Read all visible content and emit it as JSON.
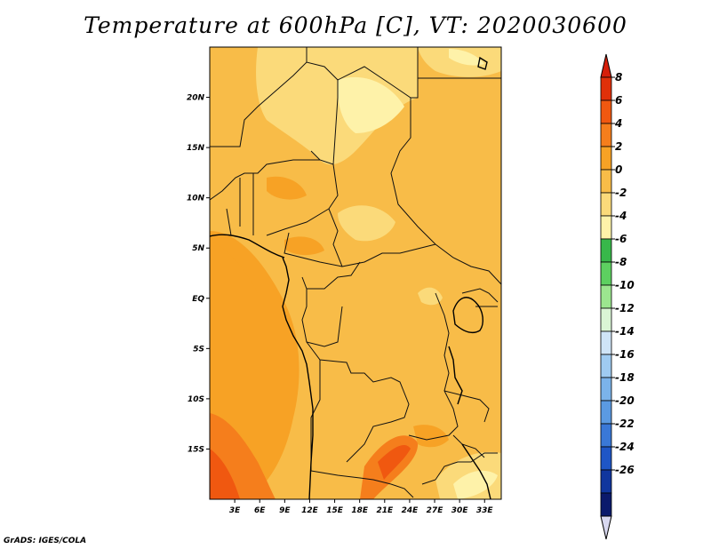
{
  "title": "Temperature at 600hPa [C], VT: 2020030600",
  "credit": "GrADS: IGES/COLA",
  "map": {
    "lon_range": [
      0,
      35
    ],
    "lat_range": [
      -20,
      25
    ],
    "lon_ticks": [
      {
        "value": 3,
        "label": "3E"
      },
      {
        "value": 6,
        "label": "6E"
      },
      {
        "value": 9,
        "label": "9E"
      },
      {
        "value": 12,
        "label": "12E"
      },
      {
        "value": 15,
        "label": "15E"
      },
      {
        "value": 18,
        "label": "18E"
      },
      {
        "value": 21,
        "label": "21E"
      },
      {
        "value": 24,
        "label": "24E"
      },
      {
        "value": 27,
        "label": "27E"
      },
      {
        "value": 30,
        "label": "30E"
      },
      {
        "value": 33,
        "label": "33E"
      }
    ],
    "lat_ticks": [
      {
        "value": 20,
        "label": "20N"
      },
      {
        "value": 15,
        "label": "15N"
      },
      {
        "value": 10,
        "label": "10N"
      },
      {
        "value": 5,
        "label": "5N"
      },
      {
        "value": 0,
        "label": "EQ"
      },
      {
        "value": -5,
        "label": "5S"
      },
      {
        "value": -10,
        "label": "10S"
      },
      {
        "value": -15,
        "label": "15S"
      }
    ]
  },
  "colorbar": {
    "levels": [
      "8",
      "6",
      "4",
      "2",
      "0",
      "-2",
      "-4",
      "-6",
      "-8",
      "-10",
      "-12",
      "-14",
      "-16",
      "-18",
      "-20",
      "-22",
      "-24",
      "-26"
    ],
    "colors": [
      "#e0300a",
      "#f05810",
      "#f57e1c",
      "#f7a225",
      "#f8bc48",
      "#fbda7a",
      "#fef2a9",
      "#38b84a",
      "#5dd060",
      "#9ce68f",
      "#daf5d5",
      "#cfe4f7",
      "#9fcbf1",
      "#7bb3ea",
      "#5b9ae2",
      "#3a78d7",
      "#1f56c6",
      "#10369e",
      "#0b1a6c"
    ],
    "top_color": "#d61f0a",
    "bottom_color": "#d8d8f0"
  }
}
